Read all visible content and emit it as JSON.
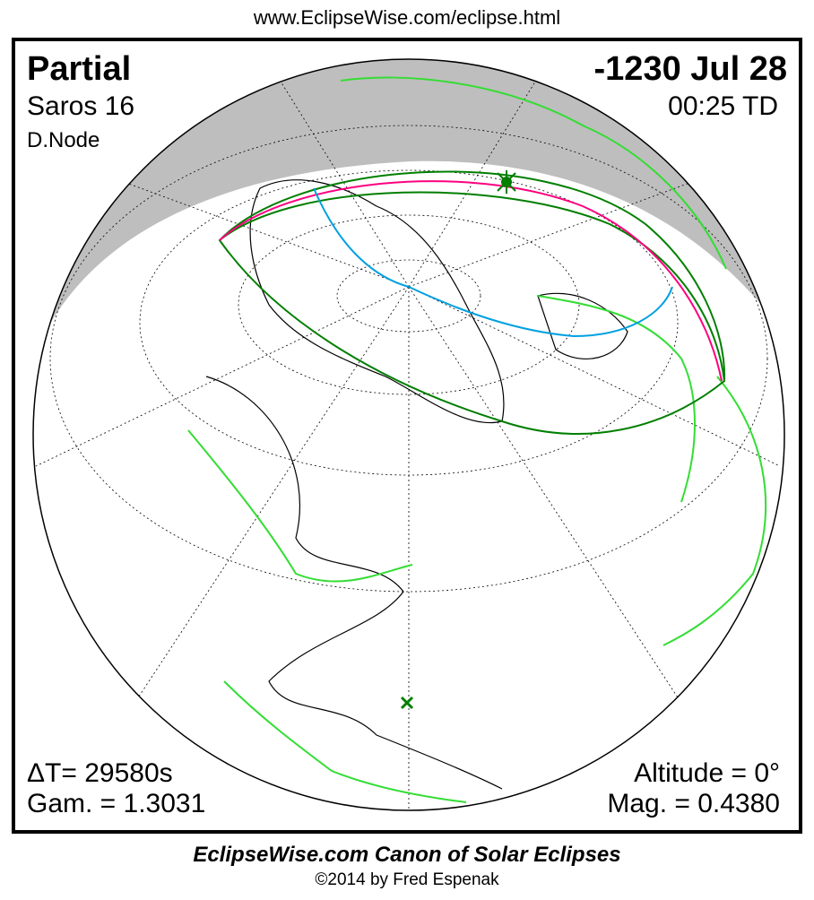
{
  "header": {
    "url": "www.EclipseWise.com/eclipse.html"
  },
  "eclipse": {
    "type": "Partial",
    "date": "-1230 Jul 28",
    "saros": "Saros  16",
    "time": "00:25 TD",
    "node": "D.Node",
    "delta_t": "ΔT=  29580s",
    "gamma": "Gam. = 1.3031",
    "altitude": "Altitude =  0°",
    "magnitude": "Mag. = 0.4380"
  },
  "colors": {
    "night": "#bebebe",
    "path_outline": "#007f00",
    "max_curve": "#ff0080",
    "midline": "#00a0e0",
    "borders": "#33dd33",
    "coast": "#000000"
  },
  "markers": {
    "greatest_eclipse": "star-icon",
    "sub_solar": "x-icon"
  },
  "footer": {
    "title": "EclipseWise.com Canon of Solar Eclipses",
    "copyright": "©2014 by Fred Espenak"
  }
}
